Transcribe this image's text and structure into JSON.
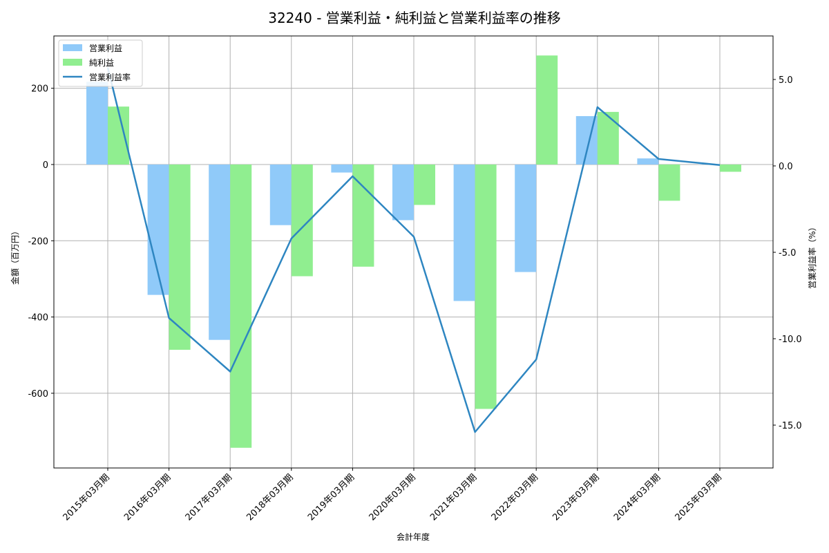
{
  "chart_data": {
    "type": "bar+line",
    "title": "32240 - 営業利益・純利益と営業利益率の推移",
    "xlabel": "会計年度",
    "ylabel": "金額（百万円）",
    "y2label": "営業利益率（%）",
    "categories": [
      "2015年03月期",
      "2016年03月期",
      "2017年03月期",
      "2018年03月期",
      "2019年03月期",
      "2020年03月期",
      "2021年03月期",
      "2022年03月期",
      "2023年03月期",
      "2024年03月期",
      "2025年03月期"
    ],
    "series": [
      {
        "name": "営業利益",
        "type": "bar",
        "axis": "left",
        "color": "#90CAF9",
        "values": [
          217,
          -342,
          -460,
          -159,
          -21,
          -146,
          -358,
          -282,
          127,
          16,
          1
        ]
      },
      {
        "name": "純利益",
        "type": "bar",
        "axis": "left",
        "color": "#90EE90",
        "values": [
          152,
          -486,
          -743,
          -293,
          -268,
          -106,
          -641,
          286,
          138,
          -95,
          -19
        ]
      },
      {
        "name": "営業利益率",
        "type": "line",
        "axis": "right",
        "color": "#2E86C1",
        "values": [
          5.7,
          -8.8,
          -11.9,
          -4.2,
          -0.6,
          -4.1,
          -15.4,
          -11.2,
          3.4,
          0.4,
          0.05
        ]
      }
    ],
    "ylim": [
      -797,
      337
    ],
    "y2lim": [
      -17.5,
      7.5
    ],
    "yticks": [
      -600,
      -400,
      -200,
      0,
      200
    ],
    "y2ticks": [
      -15.0,
      -10.0,
      -5.0,
      0.0,
      5.0
    ],
    "grid": true,
    "legend_position": "upper left"
  }
}
